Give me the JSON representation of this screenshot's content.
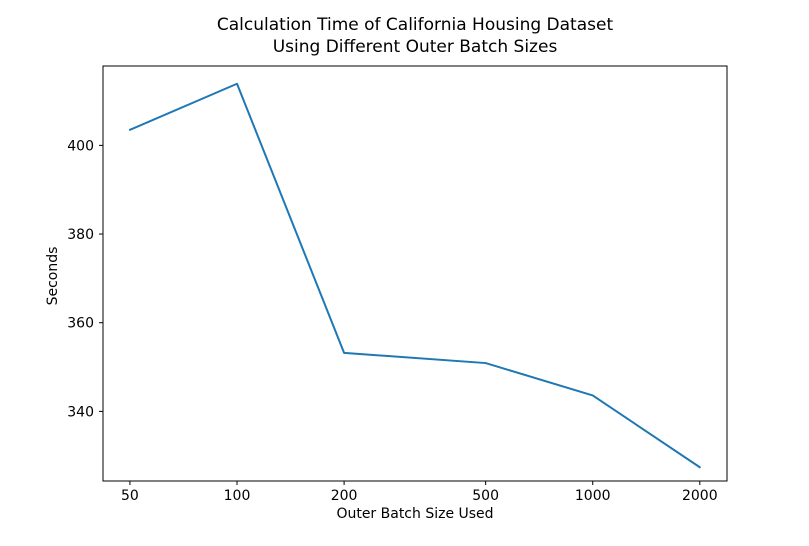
{
  "chart_data": {
    "type": "line",
    "title_lines": [
      "Calculation Time of California Housing Dataset",
      "Using Different Outer Batch Sizes"
    ],
    "xlabel": "Outer Batch Size Used",
    "ylabel": "Seconds",
    "x": [
      50,
      100,
      200,
      500,
      1000,
      2000
    ],
    "y": [
      403.5,
      413.9,
      353.2,
      350.9,
      343.6,
      327.4
    ],
    "x_scale": "log",
    "xlim": [
      42,
      2385
    ],
    "ylim": [
      324.3,
      417.9
    ],
    "x_ticks": [
      50,
      100,
      200,
      500,
      1000,
      2000
    ],
    "x_tick_labels": [
      "50",
      "100",
      "200",
      "500",
      "1000",
      "2000"
    ],
    "y_ticks": [
      340,
      360,
      380,
      400
    ],
    "y_tick_labels": [
      "340",
      "360",
      "380",
      "400"
    ],
    "grid": false,
    "legend_position": "none",
    "line_color": "#1f77b4",
    "spine_color": "#000000",
    "background_color": "#ffffff"
  }
}
